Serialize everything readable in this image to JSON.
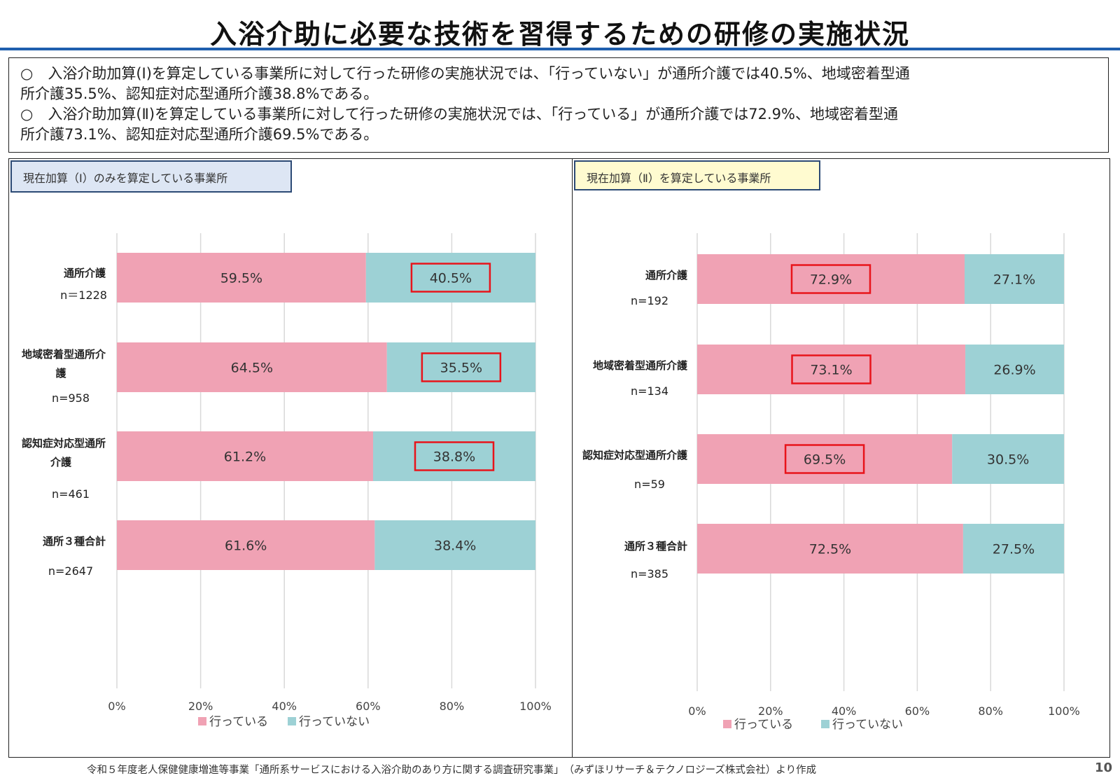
{
  "title": "入浴介助に必要な技術を習得するための研修の実施状況",
  "summary": [
    "○　入浴介助加算(Ⅰ)を算定している事業所に対して行った研修の実施状況では、「行っていない」が通所介護では40.5%、地域密着型通",
    "所介護35.5%、認知症対応型通所介護38.8%である。",
    "○　入浴介助加算(Ⅱ)を算定している事業所に対して行った研修の実施状況では、「行っている」が通所介護では72.9%、地域密着型通",
    "所介護73.1%、認知症対応型通所介護69.5%である。"
  ],
  "colors": {
    "done": "#f0a2b4",
    "not_done": "#9dd1d5",
    "highlight": "#e8141b",
    "rule": "#1f5fae"
  },
  "chart_data": [
    {
      "type": "bar",
      "orientation": "horizontal",
      "stacked": true,
      "panel_label": "現在加算（Ⅰ）のみを算定している事業所",
      "categories": [
        {
          "label": [
            "通所介護"
          ],
          "n": "n＝1228"
        },
        {
          "label": [
            "地域密着型通所介",
            "護"
          ],
          "n": "n=958"
        },
        {
          "label": [
            "認知症対応型通所",
            "介護"
          ],
          "n": "n=461"
        },
        {
          "label": [
            "通所３種合計"
          ],
          "n": "n=2647"
        }
      ],
      "series": [
        {
          "name": "行っている",
          "values": [
            59.5,
            64.5,
            61.2,
            61.6
          ],
          "labels": [
            "59.5%",
            "64.5%",
            "61.2%",
            "61.6%"
          ]
        },
        {
          "name": "行っていない",
          "values": [
            40.5,
            35.5,
            38.8,
            38.4
          ],
          "labels": [
            "40.5%",
            "35.5%",
            "38.8%",
            "38.4%"
          ]
        }
      ],
      "highlighted_series": "行っていない",
      "highlighted_categories": [
        0,
        1,
        2
      ],
      "xlim": [
        0,
        100
      ],
      "xticks": [
        "0%",
        "20%",
        "40%",
        "60%",
        "80%",
        "100%"
      ],
      "grid": true,
      "legend_position": "bottom"
    },
    {
      "type": "bar",
      "orientation": "horizontal",
      "stacked": true,
      "panel_label": "現在加算（Ⅱ）を算定している事業所",
      "categories": [
        {
          "label": [
            "通所介護"
          ],
          "n": "n=192"
        },
        {
          "label": [
            "地域密着型通所介護"
          ],
          "n": "n=134"
        },
        {
          "label": [
            "認知症対応型通所介護"
          ],
          "n": "n=59"
        },
        {
          "label": [
            "通所３種合計"
          ],
          "n": "n=385"
        }
      ],
      "series": [
        {
          "name": "行っている",
          "values": [
            72.9,
            73.1,
            69.5,
            72.5
          ],
          "labels": [
            "72.9%",
            "73.1%",
            "69.5%",
            "72.5%"
          ]
        },
        {
          "name": "行っていない",
          "values": [
            27.1,
            26.9,
            30.5,
            27.5
          ],
          "labels": [
            "27.1%",
            "26.9%",
            "30.5%",
            "27.5%"
          ]
        }
      ],
      "highlighted_series": "行っている",
      "highlighted_categories": [
        0,
        1,
        2
      ],
      "xlim": [
        0,
        100
      ],
      "xticks": [
        "0%",
        "20%",
        "40%",
        "60%",
        "80%",
        "100%"
      ],
      "grid": true,
      "legend_position": "bottom"
    }
  ],
  "footer": {
    "note": "令和５年度老人保健健康増進等事業「通所系サービスにおける入浴介助のあり方に関する調査研究事業」　（みずほリサーチ＆テクノロジーズ株式会社）より作成",
    "page_number": "10"
  }
}
